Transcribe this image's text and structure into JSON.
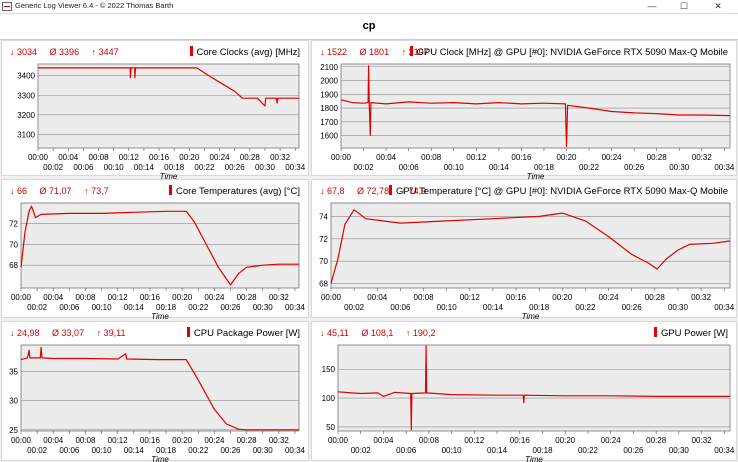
{
  "window": {
    "title": "Generic Log Viewer 6.4 - © 2022 Thomas Barth",
    "minimize": "—",
    "maximize": "☐",
    "close": "✕"
  },
  "heading": "cp",
  "colors": {
    "series": "#e00000",
    "stat": "#cc0000",
    "grid": "#8c8c8c",
    "plot_bg": "#ececec"
  },
  "panels": [
    {
      "stats": {
        "min": "↓ 3034",
        "avg": "Ø 3396",
        "max": "↑ 3447"
      },
      "title": "Core Clocks (avg) [MHz]"
    },
    {
      "stats": {
        "min": "↓ 1522",
        "avg": "Ø 1801",
        "max": "↑ 2107"
      },
      "title": "GPU Clock [MHz] @ GPU [#0]: NVIDIA  GeForce RTX 5090 Max-Q Mobile"
    },
    {
      "stats": {
        "min": "↓ 66",
        "avg": "Ø 71,07",
        "max": "↑ 73,7"
      },
      "title": "Core Temperatures (avg) [°C]"
    },
    {
      "stats": {
        "min": "↓ 67,8",
        "avg": "Ø 72,78",
        "max": "↑ 74,9"
      },
      "title": "GPU Temperature [°C] @ GPU [#0]: NVIDIA  GeForce RTX 5090 Max-Q Mobile"
    },
    {
      "stats": {
        "min": "↓ 24,98",
        "avg": "Ø 33,07",
        "max": "↑ 39,11"
      },
      "title": "CPU Package Power [W]"
    },
    {
      "stats": {
        "min": "↓ 45,11",
        "avg": "Ø 108,1",
        "max": "↑ 190,2"
      },
      "title": "GPU Power [W]"
    }
  ],
  "chart_data": [
    {
      "type": "line",
      "title": "Core Clocks (avg) [MHz]",
      "xlabel": "Time",
      "xticks": [
        "00:00",
        "00:02",
        "00:04",
        "00:06",
        "00:08",
        "00:10",
        "00:12",
        "00:14",
        "00:16",
        "00:18",
        "00:20",
        "00:22",
        "00:24",
        "00:26",
        "00:28",
        "00:30",
        "00:32",
        "00:34"
      ],
      "yticks": [
        3100,
        3200,
        3300,
        3400
      ],
      "ylim": [
        3030,
        3460
      ],
      "grid": true,
      "series": [
        {
          "values": [
            [
              0,
              3440
            ],
            [
              12.2,
              3440
            ],
            [
              12.2,
              3390
            ],
            [
              12.3,
              3440
            ],
            [
              12.8,
              3440
            ],
            [
              12.8,
              3390
            ],
            [
              12.9,
              3440
            ],
            [
              21,
              3440
            ],
            [
              23,
              3390
            ],
            [
              26,
              3320
            ],
            [
              27,
              3285
            ],
            [
              29,
              3285
            ],
            [
              30,
              3245
            ],
            [
              30.1,
              3285
            ],
            [
              31.5,
              3285
            ],
            [
              31.6,
              3260
            ],
            [
              31.7,
              3285
            ],
            [
              34.5,
              3285
            ]
          ]
        }
      ]
    },
    {
      "type": "line",
      "title": "GPU Clock [MHz] @ GPU [#0]: NVIDIA  GeForce RTX 5090 Max-Q Mobile",
      "xlabel": "Time",
      "xticks": [
        "00:00",
        "00:02",
        "00:04",
        "00:06",
        "00:08",
        "00:10",
        "00:12",
        "00:14",
        "00:16",
        "00:18",
        "00:20",
        "00:22",
        "00:24",
        "00:26",
        "00:28",
        "00:30",
        "00:32",
        "00:34"
      ],
      "yticks": [
        1600,
        1700,
        1800,
        1900,
        2000,
        2100
      ],
      "ylim": [
        1510,
        2120
      ],
      "grid": true,
      "series": [
        {
          "values": [
            [
              0,
              1860
            ],
            [
              1,
              1840
            ],
            [
              2,
              1835
            ],
            [
              2.4,
              1840
            ],
            [
              2.45,
              2107
            ],
            [
              2.5,
              1840
            ],
            [
              2.6,
              1600
            ],
            [
              2.65,
              1840
            ],
            [
              4,
              1830
            ],
            [
              6,
              1845
            ],
            [
              8,
              1835
            ],
            [
              10,
              1840
            ],
            [
              12,
              1830
            ],
            [
              14,
              1840
            ],
            [
              16,
              1830
            ],
            [
              18,
              1835
            ],
            [
              19.9,
              1830
            ],
            [
              20,
              1522
            ],
            [
              20.1,
              1820
            ],
            [
              22,
              1800
            ],
            [
              24,
              1775
            ],
            [
              26,
              1765
            ],
            [
              28,
              1760
            ],
            [
              30,
              1750
            ],
            [
              32,
              1750
            ],
            [
              34.5,
              1745
            ]
          ]
        }
      ]
    },
    {
      "type": "line",
      "title": "Core Temperatures (avg) [°C]",
      "xlabel": "Time",
      "xticks": [
        "00:00",
        "00:02",
        "00:04",
        "00:06",
        "00:08",
        "00:10",
        "00:12",
        "00:14",
        "00:16",
        "00:18",
        "00:20",
        "00:22",
        "00:24",
        "00:26",
        "00:28",
        "00:30",
        "00:32",
        "00:34"
      ],
      "yticks": [
        68,
        70,
        72
      ],
      "ylim": [
        65.8,
        74
      ],
      "grid": true,
      "series": [
        {
          "values": [
            [
              0,
              67.8
            ],
            [
              0.5,
              71.2
            ],
            [
              1,
              73.2
            ],
            [
              1.3,
              73.7
            ],
            [
              1.8,
              72.6
            ],
            [
              2.5,
              72.9
            ],
            [
              6,
              73.0
            ],
            [
              10,
              73.0
            ],
            [
              14,
              73.1
            ],
            [
              18,
              73.2
            ],
            [
              20.5,
              73.2
            ],
            [
              21.5,
              72.2
            ],
            [
              23,
              70.0
            ],
            [
              24.5,
              67.8
            ],
            [
              26,
              66.1
            ],
            [
              27,
              67.2
            ],
            [
              28,
              67.8
            ],
            [
              30,
              68.0
            ],
            [
              32,
              68.1
            ],
            [
              34.5,
              68.1
            ]
          ]
        }
      ]
    },
    {
      "type": "line",
      "title": "GPU Temperature [°C] @ GPU [#0]: NVIDIA  GeForce RTX 5090 Max-Q Mobile",
      "xlabel": "Time",
      "xticks": [
        "00:00",
        "00:02",
        "00:04",
        "00:06",
        "00:08",
        "00:10",
        "00:12",
        "00:14",
        "00:16",
        "00:18",
        "00:20",
        "00:22",
        "00:24",
        "00:26",
        "00:28",
        "00:30",
        "00:32",
        "00:34"
      ],
      "yticks": [
        68,
        70,
        72,
        74
      ],
      "ylim": [
        67.6,
        75.2
      ],
      "grid": true,
      "series": [
        {
          "values": [
            [
              0,
              68.0
            ],
            [
              0.6,
              70.2
            ],
            [
              1.2,
              73.3
            ],
            [
              2,
              74.6
            ],
            [
              3,
              73.8
            ],
            [
              6,
              73.4
            ],
            [
              10,
              73.6
            ],
            [
              14,
              73.8
            ],
            [
              18,
              74.0
            ],
            [
              20,
              74.3
            ],
            [
              22,
              73.6
            ],
            [
              24,
              72.2
            ],
            [
              26,
              70.6
            ],
            [
              27.5,
              69.8
            ],
            [
              28.2,
              69.3
            ],
            [
              29,
              70.2
            ],
            [
              30,
              71.0
            ],
            [
              31,
              71.5
            ],
            [
              33,
              71.6
            ],
            [
              34.5,
              71.8
            ]
          ]
        }
      ]
    },
    {
      "type": "line",
      "title": "CPU Package Power [W]",
      "xlabel": "Time",
      "xticks": [
        "00:00",
        "00:02",
        "00:04",
        "00:06",
        "00:08",
        "00:10",
        "00:12",
        "00:14",
        "00:16",
        "00:18",
        "00:20",
        "00:22",
        "00:24",
        "00:26",
        "00:28",
        "00:30",
        "00:32",
        "00:34"
      ],
      "yticks": [
        25,
        30,
        35
      ],
      "ylim": [
        24.8,
        39.5
      ],
      "grid": true,
      "series": [
        {
          "values": [
            [
              0,
              37.0
            ],
            [
              0.8,
              37.3
            ],
            [
              1,
              38.6
            ],
            [
              1.1,
              37.3
            ],
            [
              2.4,
              37.3
            ],
            [
              2.5,
              39.1
            ],
            [
              2.6,
              37.3
            ],
            [
              4,
              37.2
            ],
            [
              8,
              37.2
            ],
            [
              12,
              37.1
            ],
            [
              13,
              38.0
            ],
            [
              13.1,
              37.1
            ],
            [
              17,
              37.0
            ],
            [
              20.5,
              37.0
            ],
            [
              22,
              33.5
            ],
            [
              24,
              28.5
            ],
            [
              25.5,
              26.0
            ],
            [
              27,
              25.1
            ],
            [
              28,
              25.0
            ],
            [
              34.5,
              25.0
            ]
          ]
        }
      ]
    },
    {
      "type": "line",
      "title": "GPU Power [W]",
      "xlabel": "Time",
      "xticks": [
        "00:00",
        "00:02",
        "00:04",
        "00:06",
        "00:08",
        "00:10",
        "00:12",
        "00:14",
        "00:16",
        "00:18",
        "00:20",
        "00:22",
        "00:24",
        "00:26",
        "00:28",
        "00:30",
        "00:32",
        "00:34"
      ],
      "yticks": [
        50,
        100,
        150
      ],
      "ylim": [
        43,
        192
      ],
      "grid": true,
      "series": [
        {
          "values": [
            [
              0,
              111
            ],
            [
              2,
              108
            ],
            [
              3.5,
              109
            ],
            [
              4,
              103
            ],
            [
              5,
              110
            ],
            [
              6.4,
              108
            ],
            [
              6.45,
              45.1
            ],
            [
              6.5,
              108
            ],
            [
              7.7,
              109
            ],
            [
              7.75,
              190.2
            ],
            [
              7.8,
              109
            ],
            [
              10,
              106
            ],
            [
              14,
              105
            ],
            [
              16.3,
              105
            ],
            [
              16.35,
              92
            ],
            [
              16.4,
              105
            ],
            [
              20,
              104
            ],
            [
              24,
              104
            ],
            [
              28,
              103
            ],
            [
              34.5,
              103
            ]
          ]
        }
      ]
    }
  ]
}
